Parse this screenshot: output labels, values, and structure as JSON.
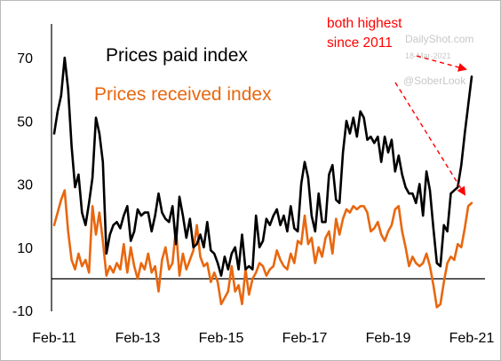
{
  "chart_data": {
    "type": "line",
    "x_ticks": [
      "Feb-11",
      "Feb-13",
      "Feb-15",
      "Feb-17",
      "Feb-19",
      "Feb-21"
    ],
    "y_ticks": [
      70,
      50,
      30,
      10,
      -10
    ],
    "ylim": [
      -10,
      78
    ],
    "zero_line": true,
    "series": [
      {
        "name": "Prices paid index",
        "color": "#000000",
        "points": [
          [
            "2011-02",
            46
          ],
          [
            "2011-03",
            53
          ],
          [
            "2011-04",
            58
          ],
          [
            "2011-05",
            70
          ],
          [
            "2011-06",
            60
          ],
          [
            "2011-07",
            42
          ],
          [
            "2011-08",
            29
          ],
          [
            "2011-09",
            33
          ],
          [
            "2011-10",
            21
          ],
          [
            "2011-11",
            17
          ],
          [
            "2011-12",
            24
          ],
          [
            "2012-01",
            32
          ],
          [
            "2012-02",
            51
          ],
          [
            "2012-03",
            46
          ],
          [
            "2012-04",
            37
          ],
          [
            "2012-05",
            8
          ],
          [
            "2012-06",
            14
          ],
          [
            "2012-07",
            17
          ],
          [
            "2012-08",
            18
          ],
          [
            "2012-09",
            16
          ],
          [
            "2012-10",
            20
          ],
          [
            "2012-11",
            23
          ],
          [
            "2012-12",
            12
          ],
          [
            "2013-01",
            15
          ],
          [
            "2013-02",
            22
          ],
          [
            "2013-03",
            20
          ],
          [
            "2013-04",
            21
          ],
          [
            "2013-05",
            21
          ],
          [
            "2013-06",
            15
          ],
          [
            "2013-07",
            20
          ],
          [
            "2013-08",
            27
          ],
          [
            "2013-09",
            21
          ],
          [
            "2013-10",
            19
          ],
          [
            "2013-11",
            18
          ],
          [
            "2013-12",
            23
          ],
          [
            "2014-01",
            11
          ],
          [
            "2014-02",
            26
          ],
          [
            "2014-03",
            20
          ],
          [
            "2014-04",
            13
          ],
          [
            "2014-05",
            19
          ],
          [
            "2014-06",
            10
          ],
          [
            "2014-07",
            11
          ],
          [
            "2014-08",
            14
          ],
          [
            "2014-09",
            10
          ],
          [
            "2014-10",
            18
          ],
          [
            "2014-11",
            9
          ],
          [
            "2014-12",
            8
          ],
          [
            "2015-01",
            5
          ],
          [
            "2015-02",
            1
          ],
          [
            "2015-03",
            7
          ],
          [
            "2015-04",
            3
          ],
          [
            "2015-05",
            8
          ],
          [
            "2015-06",
            10
          ],
          [
            "2015-07",
            3
          ],
          [
            "2015-08",
            14
          ],
          [
            "2015-09",
            3
          ],
          [
            "2015-10",
            4
          ],
          [
            "2015-11",
            3
          ],
          [
            "2015-12",
            20
          ],
          [
            "2016-01",
            10
          ],
          [
            "2016-02",
            12
          ],
          [
            "2016-03",
            19
          ],
          [
            "2016-04",
            17
          ],
          [
            "2016-05",
            20
          ],
          [
            "2016-06",
            22
          ],
          [
            "2016-07",
            17
          ],
          [
            "2016-08",
            20
          ],
          [
            "2016-09",
            15
          ],
          [
            "2016-10",
            23
          ],
          [
            "2016-11",
            16
          ],
          [
            "2016-12",
            15
          ],
          [
            "2017-01",
            30
          ],
          [
            "2017-02",
            37
          ],
          [
            "2017-03",
            32
          ],
          [
            "2017-04",
            20
          ],
          [
            "2017-05",
            15
          ],
          [
            "2017-06",
            27
          ],
          [
            "2017-07",
            18
          ],
          [
            "2017-08",
            18
          ],
          [
            "2017-09",
            33
          ],
          [
            "2017-10",
            36
          ],
          [
            "2017-11",
            25
          ],
          [
            "2017-12",
            24
          ],
          [
            "2018-01",
            40
          ],
          [
            "2018-02",
            50
          ],
          [
            "2018-03",
            46
          ],
          [
            "2018-04",
            51
          ],
          [
            "2018-05",
            45
          ],
          [
            "2018-06",
            53
          ],
          [
            "2018-07",
            51
          ],
          [
            "2018-08",
            44
          ],
          [
            "2018-09",
            45
          ],
          [
            "2018-10",
            43
          ],
          [
            "2018-11",
            45
          ],
          [
            "2018-12",
            37
          ],
          [
            "2019-01",
            45
          ],
          [
            "2019-02",
            40
          ],
          [
            "2019-03",
            44
          ],
          [
            "2019-04",
            34
          ],
          [
            "2019-05",
            39
          ],
          [
            "2019-06",
            33
          ],
          [
            "2019-07",
            29
          ],
          [
            "2019-08",
            27
          ],
          [
            "2019-09",
            27
          ],
          [
            "2019-10",
            24
          ],
          [
            "2019-11",
            30
          ],
          [
            "2019-12",
            20
          ],
          [
            "2020-01",
            34
          ],
          [
            "2020-02",
            28
          ],
          [
            "2020-03",
            16
          ],
          [
            "2020-04",
            5
          ],
          [
            "2020-05",
            4
          ],
          [
            "2020-06",
            17
          ],
          [
            "2020-07",
            15
          ],
          [
            "2020-08",
            27
          ],
          [
            "2020-09",
            28
          ],
          [
            "2020-10",
            29
          ],
          [
            "2020-11",
            36
          ],
          [
            "2020-12",
            46
          ],
          [
            "2021-01",
            55
          ],
          [
            "2021-02",
            64
          ]
        ]
      },
      {
        "name": "Prices received index",
        "color": "#e8670f",
        "points": [
          [
            "2011-02",
            17
          ],
          [
            "2011-03",
            21
          ],
          [
            "2011-04",
            25
          ],
          [
            "2011-05",
            28
          ],
          [
            "2011-06",
            15
          ],
          [
            "2011-07",
            6
          ],
          [
            "2011-08",
            3
          ],
          [
            "2011-09",
            8
          ],
          [
            "2011-10",
            4
          ],
          [
            "2011-11",
            6
          ],
          [
            "2011-12",
            2
          ],
          [
            "2012-01",
            23
          ],
          [
            "2012-02",
            14
          ],
          [
            "2012-03",
            21
          ],
          [
            "2012-04",
            12
          ],
          [
            "2012-05",
            1
          ],
          [
            "2012-06",
            4
          ],
          [
            "2012-07",
            2
          ],
          [
            "2012-08",
            5
          ],
          [
            "2012-09",
            3
          ],
          [
            "2012-10",
            11
          ],
          [
            "2012-11",
            2
          ],
          [
            "2012-12",
            10
          ],
          [
            "2013-01",
            4
          ],
          [
            "2013-02",
            0
          ],
          [
            "2013-03",
            5
          ],
          [
            "2013-04",
            3
          ],
          [
            "2013-05",
            8
          ],
          [
            "2013-06",
            2
          ],
          [
            "2013-07",
            4
          ],
          [
            "2013-08",
            -4
          ],
          [
            "2013-09",
            6
          ],
          [
            "2013-10",
            10
          ],
          [
            "2013-11",
            3
          ],
          [
            "2013-12",
            5
          ],
          [
            "2014-01",
            16
          ],
          [
            "2014-02",
            1
          ],
          [
            "2014-03",
            8
          ],
          [
            "2014-04",
            3
          ],
          [
            "2014-05",
            6
          ],
          [
            "2014-06",
            9
          ],
          [
            "2014-07",
            17
          ],
          [
            "2014-08",
            7
          ],
          [
            "2014-09",
            4
          ],
          [
            "2014-10",
            5
          ],
          [
            "2014-11",
            -1
          ],
          [
            "2014-12",
            2
          ],
          [
            "2015-01",
            -1
          ],
          [
            "2015-02",
            -8
          ],
          [
            "2015-03",
            -6
          ],
          [
            "2015-04",
            -4
          ],
          [
            "2015-05",
            4
          ],
          [
            "2015-06",
            -4
          ],
          [
            "2015-07",
            -2
          ],
          [
            "2015-08",
            -8
          ],
          [
            "2015-09",
            3
          ],
          [
            "2015-10",
            -5
          ],
          [
            "2015-11",
            0
          ],
          [
            "2015-12",
            2
          ],
          [
            "2016-01",
            5
          ],
          [
            "2016-02",
            4
          ],
          [
            "2016-03",
            1
          ],
          [
            "2016-04",
            3
          ],
          [
            "2016-05",
            4
          ],
          [
            "2016-06",
            9
          ],
          [
            "2016-07",
            6
          ],
          [
            "2016-08",
            4
          ],
          [
            "2016-09",
            3
          ],
          [
            "2016-10",
            8
          ],
          [
            "2016-11",
            5
          ],
          [
            "2016-12",
            12
          ],
          [
            "2017-01",
            11
          ],
          [
            "2017-02",
            20
          ],
          [
            "2017-03",
            11
          ],
          [
            "2017-04",
            13
          ],
          [
            "2017-05",
            5
          ],
          [
            "2017-06",
            10
          ],
          [
            "2017-07",
            7
          ],
          [
            "2017-08",
            13
          ],
          [
            "2017-09",
            15
          ],
          [
            "2017-10",
            8
          ],
          [
            "2017-11",
            19
          ],
          [
            "2017-12",
            14
          ],
          [
            "2018-01",
            19
          ],
          [
            "2018-02",
            22
          ],
          [
            "2018-03",
            21
          ],
          [
            "2018-04",
            23
          ],
          [
            "2018-05",
            22
          ],
          [
            "2018-06",
            23
          ],
          [
            "2018-07",
            23
          ],
          [
            "2018-08",
            21
          ],
          [
            "2018-09",
            15
          ],
          [
            "2018-10",
            16
          ],
          [
            "2018-11",
            18
          ],
          [
            "2018-12",
            14
          ],
          [
            "2019-01",
            12
          ],
          [
            "2019-02",
            15
          ],
          [
            "2019-03",
            17
          ],
          [
            "2019-04",
            22
          ],
          [
            "2019-05",
            23
          ],
          [
            "2019-06",
            15
          ],
          [
            "2019-07",
            10
          ],
          [
            "2019-08",
            4
          ],
          [
            "2019-09",
            7
          ],
          [
            "2019-10",
            5
          ],
          [
            "2019-11",
            4
          ],
          [
            "2019-12",
            5
          ],
          [
            "2020-01",
            8
          ],
          [
            "2020-02",
            4
          ],
          [
            "2020-03",
            -2
          ],
          [
            "2020-04",
            -9
          ],
          [
            "2020-05",
            -8
          ],
          [
            "2020-06",
            -1
          ],
          [
            "2020-07",
            5
          ],
          [
            "2020-08",
            7
          ],
          [
            "2020-09",
            6
          ],
          [
            "2020-10",
            11
          ],
          [
            "2020-11",
            10
          ],
          [
            "2020-12",
            16
          ],
          [
            "2021-01",
            23
          ],
          [
            "2021-02",
            24
          ]
        ]
      }
    ],
    "legend": [
      {
        "label": "Prices paid index",
        "color": "#000000"
      },
      {
        "label": "Prices received index",
        "color": "#e8670f"
      }
    ],
    "annotation": {
      "lines": [
        "both highest",
        "since 2011"
      ],
      "color": "#ff0000"
    },
    "watermark": {
      "site": "DailyShot.com",
      "date": "18-Mar-2021",
      "handle": "@SoberLook"
    }
  }
}
